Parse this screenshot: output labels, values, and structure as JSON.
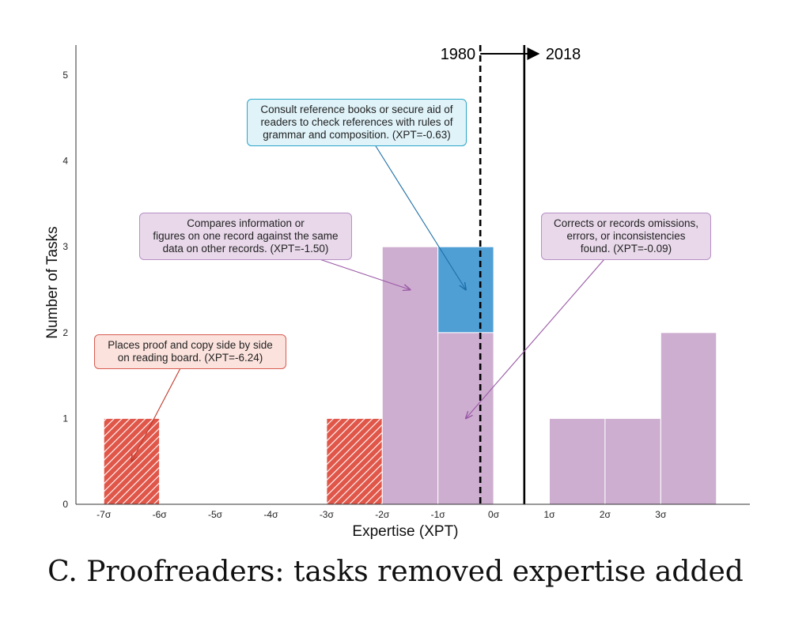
{
  "chart_data": {
    "type": "bar",
    "xlabel": "Expertise (XPT)",
    "ylabel": "Number of Tasks",
    "ylim": [
      0,
      5.35
    ],
    "xlim": [
      -7.5,
      4.6
    ],
    "yticks": [
      0,
      1,
      2,
      3,
      4,
      5
    ],
    "xticks": [
      {
        "value": -7,
        "label": "-7σ"
      },
      {
        "value": -6,
        "label": "-6σ"
      },
      {
        "value": -5,
        "label": "-5σ"
      },
      {
        "value": -4,
        "label": "-4σ"
      },
      {
        "value": -3,
        "label": "-3σ"
      },
      {
        "value": -2,
        "label": "-2σ"
      },
      {
        "value": -1,
        "label": "-1σ"
      },
      {
        "value": 0,
        "label": "0σ"
      },
      {
        "value": 1,
        "label": "1σ"
      },
      {
        "value": 2,
        "label": "2σ"
      },
      {
        "value": 3,
        "label": "3σ"
      }
    ],
    "bars": [
      {
        "x0": -7,
        "x1": -6,
        "y0": 0,
        "y1": 1,
        "kind": "removed"
      },
      {
        "x0": -3,
        "x1": -2,
        "y0": 0,
        "y1": 1,
        "kind": "removed"
      },
      {
        "x0": -2,
        "x1": -1,
        "y0": 0,
        "y1": 3,
        "kind": "retained"
      },
      {
        "x0": -1,
        "x1": 0,
        "y0": 0,
        "y1": 2,
        "kind": "retained"
      },
      {
        "x0": -1,
        "x1": 0,
        "y0": 2,
        "y1": 3,
        "kind": "added"
      },
      {
        "x0": 1,
        "x1": 2,
        "y0": 0,
        "y1": 1,
        "kind": "retained"
      },
      {
        "x0": 2,
        "x1": 3,
        "y0": 0,
        "y1": 1,
        "kind": "retained"
      },
      {
        "x0": 3,
        "x1": 4,
        "y0": 0,
        "y1": 2,
        "kind": "retained"
      }
    ],
    "vlines": [
      {
        "x": -0.24,
        "label": "1980",
        "style": "dashed"
      },
      {
        "x": 0.55,
        "label": "2018",
        "style": "solid"
      }
    ],
    "annotations": [
      {
        "id": "ann-blue",
        "lines": [
          "Consult reference books or secure aid of",
          "readers to check references with rules of",
          "grammar and composition. (XPT=-0.63)"
        ],
        "arrow_to": {
          "x": -0.5,
          "y": 2.5
        }
      },
      {
        "id": "ann-purple-left",
        "lines": [
          "Compares information or",
          "figures on one record against the same",
          "data on other records. (XPT=-1.50)"
        ],
        "arrow_to": {
          "x": -1.5,
          "y": 2.5
        }
      },
      {
        "id": "ann-purple-right",
        "lines": [
          "Corrects or records omissions,",
          "errors, or inconsistencies",
          "found. (XPT=-0.09)"
        ],
        "arrow_to": {
          "x": -0.5,
          "y": 1.0
        }
      },
      {
        "id": "ann-red",
        "lines": [
          "Places proof and copy side by side",
          "on reading board. (XPT=-6.24)"
        ],
        "arrow_to": {
          "x": -6.5,
          "y": 0.5
        }
      }
    ],
    "colors": {
      "retained": "#cdaed0",
      "added": "#4f9fd5",
      "removed": "#e0574a",
      "hatch_line": "#ffffff",
      "axis": "#333333",
      "text": "#222222"
    }
  },
  "caption": "C. Proofreaders: tasks removed expertise added"
}
